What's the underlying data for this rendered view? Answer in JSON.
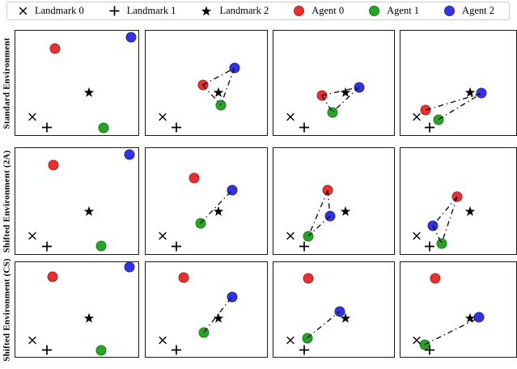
{
  "legend": {
    "items": [
      {
        "label": "Landmark 0",
        "marker": "x",
        "color": "#000000"
      },
      {
        "label": "Landmark 1",
        "marker": "plus",
        "color": "#000000"
      },
      {
        "label": "Landmark 2",
        "marker": "star",
        "color": "#000000"
      },
      {
        "label": "Agent 0",
        "marker": "circle",
        "color": "#e73131"
      },
      {
        "label": "Agent 1",
        "marker": "circle",
        "color": "#27a427"
      },
      {
        "label": "Agent 2",
        "marker": "circle",
        "color": "#3333e0"
      }
    ]
  },
  "rows": [
    {
      "label": "Standard Environment"
    },
    {
      "label": "Shifted Environment (2A)"
    },
    {
      "label": "Shifted Environment (CS)"
    }
  ],
  "chart_data": {
    "type": "scatter",
    "title": "",
    "description": "3x4 grid of multi-agent environment snapshots. Rows are environments, columns are time steps. Positions are normalized panel coordinates (x right, y down, 0-1). Dash-dot lines show inter-agent links.",
    "colors": {
      "agent0": "#e73131",
      "agent1": "#27a427",
      "agent2": "#3333e0",
      "landmark": "#000000",
      "link": "#111111"
    },
    "landmarks": {
      "x": [
        0.14,
        0.84
      ],
      "plus": [
        0.255,
        0.945
      ],
      "star": [
        0.6,
        0.615
      ]
    },
    "panels": [
      [
        {
          "agents": {
            "agent0": [
              0.32,
              0.17
            ],
            "agent1": [
              0.72,
              0.93
            ],
            "agent2": [
              0.94,
              0.06
            ]
          },
          "links": []
        },
        {
          "agents": {
            "agent0": [
              0.47,
              0.52
            ],
            "agent1": [
              0.62,
              0.71
            ],
            "agent2": [
              0.73,
              0.36
            ]
          },
          "links": [
            [
              "agent0",
              "agent2"
            ],
            [
              "agent2",
              "agent1"
            ],
            [
              "agent0",
              "agent1"
            ]
          ]
        },
        {
          "agents": {
            "agent0": [
              0.4,
              0.62
            ],
            "agent1": [
              0.49,
              0.78
            ],
            "ag2_note": "",
            "agent2": [
              0.71,
              0.54
            ]
          },
          "links": [
            [
              "agent0",
              "agent2"
            ],
            [
              "agent2",
              "agent1"
            ],
            [
              "agent0",
              "agent1"
            ]
          ]
        },
        {
          "agents": {
            "agent0": [
              0.22,
              0.76
            ],
            "agent1": [
              0.33,
              0.85
            ],
            "agent2": [
              0.7,
              0.6
            ]
          },
          "links": [
            [
              "agent0",
              "agent2"
            ],
            [
              "agent1",
              "agent2"
            ]
          ]
        }
      ],
      [
        {
          "agents": {
            "agent0": [
              0.31,
              0.16
            ],
            "agent1": [
              0.7,
              0.92
            ],
            "agent2": [
              0.93,
              0.06
            ]
          },
          "links": []
        },
        {
          "agents": {
            "agent0": [
              0.4,
              0.28
            ],
            "agent1": [
              0.45,
              0.71
            ],
            "agent2": [
              0.71,
              0.4
            ]
          },
          "links": [
            [
              "agent1",
              "agent2"
            ]
          ]
        },
        {
          "agents": {
            "agent0": [
              0.45,
              0.4
            ],
            "agent1": [
              0.29,
              0.83
            ],
            "agent2": [
              0.47,
              0.64
            ]
          },
          "links": [
            [
              "agent0",
              "agent2"
            ],
            [
              "agent0",
              "agent1"
            ],
            [
              "agent2",
              "agent1"
            ]
          ]
        },
        {
          "agents": {
            "agent0": [
              0.49,
              0.46
            ],
            "agent1": [
              0.355,
              0.9
            ],
            "agent2": [
              0.28,
              0.73
            ]
          },
          "links": [
            [
              "agent0",
              "agent2"
            ],
            [
              "agent0",
              "agent1"
            ],
            [
              "agent2",
              "agent1"
            ]
          ]
        }
      ],
      [
        {
          "agents": {
            "agent0": [
              0.3,
              0.15
            ],
            "agent1": [
              0.7,
              0.93
            ],
            "agent2": [
              0.93,
              0.05
            ]
          },
          "links": []
        },
        {
          "agents": {
            "agent0": [
              0.31,
              0.16
            ],
            "agent1": [
              0.48,
              0.74
            ],
            "agent2": [
              0.71,
              0.37
            ]
          },
          "links": [
            [
              "agent1",
              "agent2"
            ]
          ]
        },
        {
          "agents": {
            "agent0": [
              0.29,
              0.17
            ],
            "agent1": [
              0.28,
              0.8
            ],
            "agent2": [
              0.55,
              0.52
            ]
          },
          "links": [
            [
              "agent1",
              "agent2"
            ]
          ]
        },
        {
          "agents": {
            "agent0": [
              0.3,
              0.17
            ],
            "agent1": [
              0.21,
              0.87
            ],
            "agent2": [
              0.68,
              0.585
            ]
          },
          "links": [
            [
              "agent1",
              "agent2"
            ]
          ]
        }
      ]
    ],
    "marker_sizes": {
      "circle": 13,
      "x": 11,
      "plus": 13,
      "star": 14
    },
    "line_style": "dash-dot",
    "grid": "off",
    "axes": "hidden (no ticks)"
  }
}
